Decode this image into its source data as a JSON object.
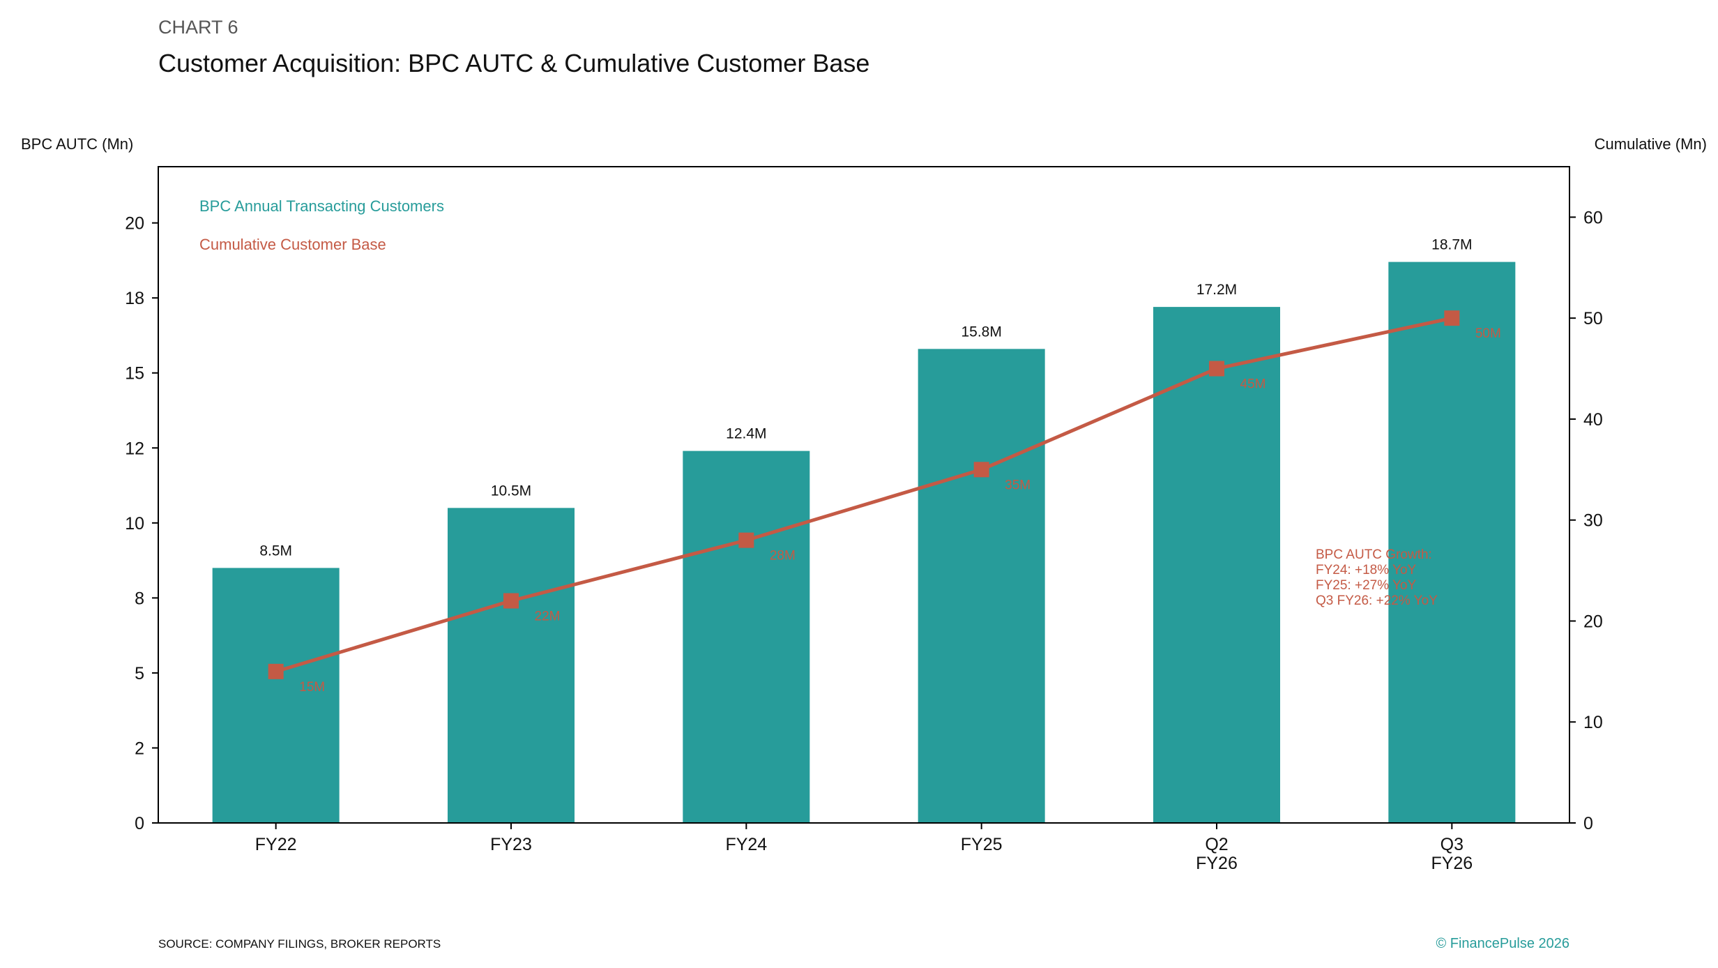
{
  "header": {
    "eyebrow": "CHART 6",
    "title": "Customer Acquisition: BPC AUTC & Cumulative Customer Base"
  },
  "footer": {
    "source": "SOURCE: COMPANY FILINGS, BROKER REPORTS",
    "credit": "© FinancePulse 2026"
  },
  "colors": {
    "bar": "#279C9A",
    "line": "#C45A45",
    "axis": "#000000",
    "text": "#111111",
    "eyebrow": "#555555"
  },
  "chart_data": {
    "type": "bar+line",
    "title": "Customer Acquisition: BPC AUTC & Cumulative Customer Base",
    "categories": [
      [
        "FY22"
      ],
      [
        "FY23"
      ],
      [
        "FY24"
      ],
      [
        "FY25"
      ],
      [
        "Q2",
        "FY26"
      ],
      [
        "Q3",
        "FY26"
      ]
    ],
    "y_left": {
      "label": "BPC AUTC (Mn)",
      "range": [
        0,
        21.875
      ],
      "ticks": [
        0,
        2.5,
        5,
        7.5,
        10,
        12.5,
        15,
        17.5,
        20
      ],
      "tick_labels": [
        "0",
        "2",
        "5",
        "8",
        "10",
        "12",
        "15",
        "18",
        "20"
      ]
    },
    "y_right": {
      "label": "Cumulative (Mn)",
      "range": [
        0,
        65
      ],
      "ticks": [
        0,
        10,
        20,
        30,
        40,
        50,
        60
      ],
      "tick_labels": [
        "0",
        "10",
        "20",
        "30",
        "40",
        "50",
        "60"
      ]
    },
    "series": [
      {
        "name": "BPC Annual Transacting Customers",
        "type": "bar",
        "axis": "left",
        "values": [
          8.5,
          10.5,
          12.4,
          15.8,
          17.2,
          18.7
        ],
        "data_labels": [
          "8.5M",
          "10.5M",
          "12.4M",
          "15.8M",
          "17.2M",
          "18.7M"
        ]
      },
      {
        "name": "Cumulative Customer Base",
        "type": "line",
        "axis": "right",
        "values": [
          15,
          22,
          28,
          35,
          45,
          50
        ],
        "data_labels": [
          "15M",
          "22M",
          "28M",
          "35M",
          "45M",
          "50M"
        ]
      }
    ],
    "legend": {
      "placement": "top-left",
      "entries": [
        "BPC Annual Transacting Customers",
        "Cumulative Customer Base"
      ]
    },
    "annotation": {
      "lines": [
        "BPC AUTC Growth:",
        "FY24: +18% YoY",
        "FY25: +27% YoY",
        "Q3 FY26: +22% YoY"
      ]
    },
    "grid": false
  }
}
